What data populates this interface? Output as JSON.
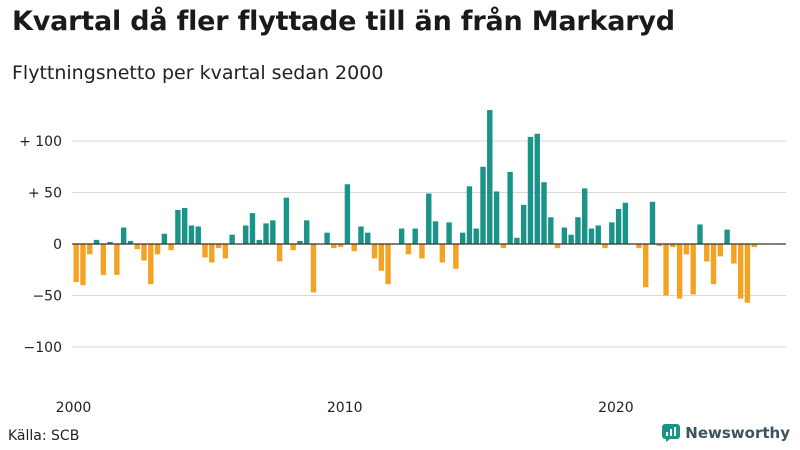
{
  "header": {
    "title": "Kvartal då fler flyttade till än från Markaryd",
    "subtitle": "Flyttningsnetto per kvartal sedan 2000"
  },
  "footer": {
    "source": "Källa: SCB",
    "brand": "Newsworthy",
    "brand_icon": "newsworthy-logo-icon"
  },
  "colors": {
    "positive": "#1a9488",
    "negative": "#f4a223",
    "grid": "#d9d9d9",
    "zero_line": "#333333",
    "brand": "#1a9488"
  },
  "chart_data": {
    "type": "bar",
    "x_start": "2000 Q1",
    "x_ticks": [
      "2000",
      "2010",
      "2020"
    ],
    "y_ticks": [
      "+ 100",
      "+  50",
      "0",
      "−50",
      "−100"
    ],
    "y_tick_values": [
      100,
      50,
      0,
      -50,
      -100
    ],
    "ylim": [
      -125,
      130
    ],
    "grid": true,
    "values": [
      -37,
      -40,
      -10,
      4,
      -30,
      2,
      -30,
      16,
      3,
      -5,
      -16,
      -39,
      -10,
      10,
      -6,
      33,
      35,
      18,
      17,
      -13,
      -18,
      -4,
      -14,
      9,
      0,
      18,
      30,
      4,
      20,
      23,
      -17,
      45,
      -6,
      3,
      23,
      -47,
      0,
      11,
      -4,
      -3,
      58,
      -7,
      17,
      11,
      -14,
      -26,
      -39,
      0,
      15,
      -10,
      15,
      -14,
      49,
      22,
      -18,
      21,
      -24,
      11,
      56,
      15,
      75,
      130,
      51,
      -4,
      70,
      6,
      38,
      104,
      107,
      60,
      26,
      -4,
      16,
      9,
      26,
      54,
      15,
      18,
      -4,
      21,
      34,
      40,
      0,
      -4,
      -42,
      41,
      -2,
      -50,
      -3,
      -53,
      -10,
      -49,
      19,
      -17,
      -39,
      -12,
      14,
      -19,
      -53,
      -57,
      -3
    ]
  }
}
